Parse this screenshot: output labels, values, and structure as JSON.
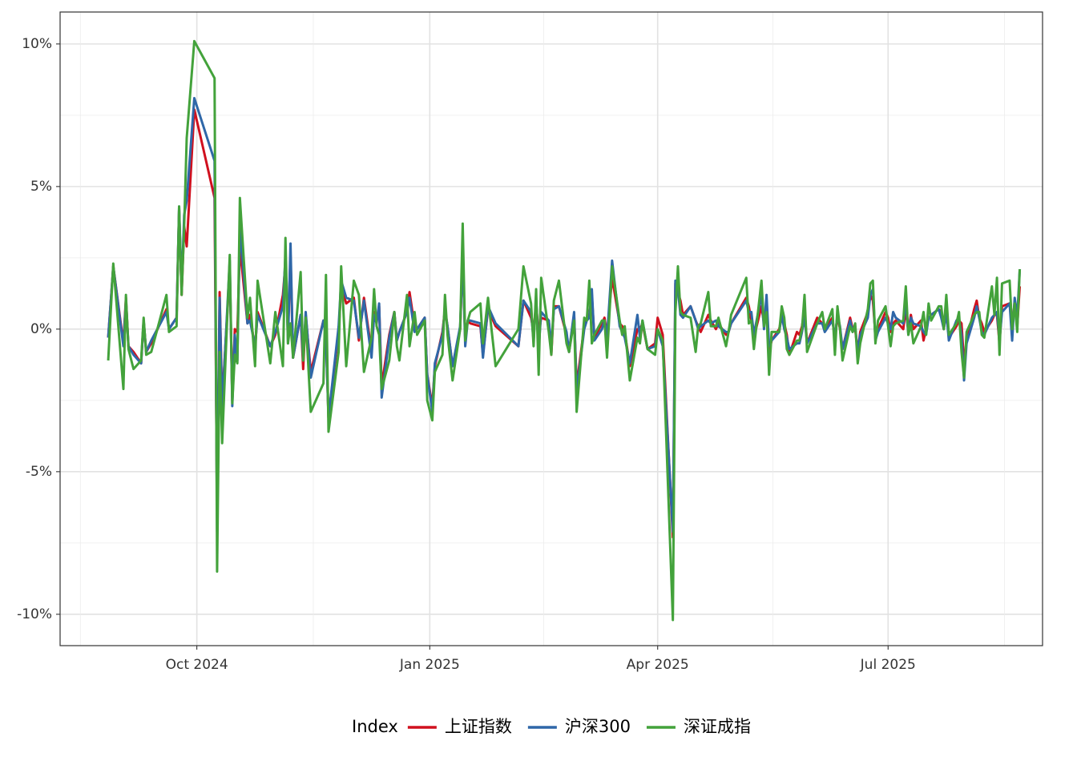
{
  "chart_data": {
    "type": "line",
    "x": [
      "2024-08-27",
      "2024-08-29",
      "2024-09-02",
      "2024-09-03",
      "2024-09-04",
      "2024-09-06",
      "2024-09-09",
      "2024-09-10",
      "2024-09-11",
      "2024-09-13",
      "2024-09-19",
      "2024-09-20",
      "2024-09-23",
      "2024-09-24",
      "2024-09-25",
      "2024-09-26",
      "2024-09-27",
      "2024-09-30",
      "2024-10-08",
      "2024-10-09",
      "2024-10-10",
      "2024-10-11",
      "2024-10-14",
      "2024-10-15",
      "2024-10-16",
      "2024-10-17",
      "2024-10-18",
      "2024-10-21",
      "2024-10-22",
      "2024-10-24",
      "2024-10-25",
      "2024-10-30",
      "2024-11-01",
      "2024-11-04",
      "2024-11-05",
      "2024-11-06",
      "2024-11-07",
      "2024-11-08",
      "2024-11-11",
      "2024-11-12",
      "2024-11-13",
      "2024-11-15",
      "2024-11-20",
      "2024-11-21",
      "2024-11-22",
      "2024-11-26",
      "2024-11-27",
      "2024-11-29",
      "2024-12-02",
      "2024-12-04",
      "2024-12-06",
      "2024-12-09",
      "2024-12-10",
      "2024-12-11",
      "2024-12-12",
      "2024-12-13",
      "2024-12-16",
      "2024-12-18",
      "2024-12-19",
      "2024-12-20",
      "2024-12-23",
      "2024-12-24",
      "2024-12-26",
      "2024-12-27",
      "2024-12-30",
      "2024-12-31",
      "2025-01-02",
      "2025-01-03",
      "2025-01-06",
      "2025-01-07",
      "2025-01-08",
      "2025-01-10",
      "2025-01-13",
      "2025-01-14",
      "2025-01-15",
      "2025-01-16",
      "2025-01-17",
      "2025-01-21",
      "2025-01-22",
      "2025-01-24",
      "2025-01-27",
      "2025-02-05",
      "2025-02-07",
      "2025-02-10",
      "2025-02-11",
      "2025-02-12",
      "2025-02-13",
      "2025-02-14",
      "2025-02-17",
      "2025-02-18",
      "2025-02-19",
      "2025-02-21",
      "2025-02-24",
      "2025-02-25",
      "2025-02-27",
      "2025-02-28",
      "2025-03-03",
      "2025-03-04",
      "2025-03-05",
      "2025-03-06",
      "2025-03-07",
      "2025-03-10",
      "2025-03-11",
      "2025-03-12",
      "2025-03-14",
      "2025-03-17",
      "2025-03-18",
      "2025-03-19",
      "2025-03-21",
      "2025-03-24",
      "2025-03-25",
      "2025-03-26",
      "2025-03-28",
      "2025-03-31",
      "2025-04-01",
      "2025-04-03",
      "2025-04-07",
      "2025-04-08",
      "2025-04-09",
      "2025-04-10",
      "2025-04-11",
      "2025-04-14",
      "2025-04-16",
      "2025-04-17",
      "2025-04-18",
      "2025-04-21",
      "2025-04-22",
      "2025-04-24",
      "2025-04-25",
      "2025-04-28",
      "2025-04-29",
      "2025-04-30",
      "2025-05-06",
      "2025-05-07",
      "2025-05-08",
      "2025-05-09",
      "2025-05-12",
      "2025-05-13",
      "2025-05-14",
      "2025-05-15",
      "2025-05-16",
      "2025-05-19",
      "2025-05-20",
      "2025-05-21",
      "2025-05-22",
      "2025-05-23",
      "2025-05-26",
      "2025-05-27",
      "2025-05-28",
      "2025-05-29",
      "2025-05-30",
      "2025-06-03",
      "2025-06-05",
      "2025-06-06",
      "2025-06-09",
      "2025-06-10",
      "2025-06-11",
      "2025-06-12",
      "2025-06-13",
      "2025-06-16",
      "2025-06-17",
      "2025-06-18",
      "2025-06-19",
      "2025-06-20",
      "2025-06-23",
      "2025-06-24",
      "2025-06-25",
      "2025-06-26",
      "2025-06-27",
      "2025-06-30",
      "2025-07-01",
      "2025-07-02",
      "2025-07-03",
      "2025-07-04",
      "2025-07-07",
      "2025-07-08",
      "2025-07-09",
      "2025-07-10",
      "2025-07-11",
      "2025-07-14",
      "2025-07-15",
      "2025-07-16",
      "2025-07-17",
      "2025-07-18",
      "2025-07-21",
      "2025-07-22",
      "2025-07-23",
      "2025-07-24",
      "2025-07-25",
      "2025-07-28",
      "2025-07-29",
      "2025-07-30",
      "2025-07-31",
      "2025-08-01",
      "2025-08-04",
      "2025-08-05",
      "2025-08-06",
      "2025-08-07",
      "2025-08-08",
      "2025-08-11",
      "2025-08-12",
      "2025-08-13",
      "2025-08-14",
      "2025-08-15",
      "2025-08-18",
      "2025-08-19",
      "2025-08-20",
      "2025-08-21",
      "2025-08-22"
    ],
    "series": [
      {
        "name": "上证指数",
        "color": "#d0101e",
        "values": [
          -0.3,
          2.2,
          -0.5,
          1.1,
          -0.6,
          -0.8,
          -1.2,
          0.3,
          -0.8,
          -0.5,
          0.7,
          0.0,
          0.4,
          4.2,
          1.2,
          3.6,
          2.9,
          7.7,
          4.6,
          -6.6,
          1.3,
          -2.6,
          2.1,
          -2.5,
          0.0,
          -0.1,
          2.9,
          0.2,
          0.5,
          -0.7,
          0.6,
          -0.6,
          -0.2,
          1.2,
          2.3,
          -0.1,
          2.6,
          -1.0,
          0.5,
          -1.4,
          0.5,
          -1.5,
          0.3,
          -0.3,
          -3.1,
          -0.1,
          1.5,
          0.9,
          1.1,
          -0.4,
          1.1,
          -0.8,
          0.6,
          0.3,
          0.8,
          -2.0,
          -0.2,
          0.6,
          -0.4,
          -0.1,
          0.6,
          1.3,
          0.1,
          0.0,
          0.4,
          -1.6,
          -2.7,
          -1.3,
          -0.1,
          0.7,
          0.1,
          -1.3,
          0.0,
          2.6,
          -0.4,
          0.3,
          0.2,
          0.1,
          -0.9,
          0.7,
          0.1,
          -0.6,
          1.0,
          0.4,
          -0.1,
          0.9,
          -0.2,
          0.4,
          0.3,
          -0.9,
          0.8,
          0.8,
          -0.2,
          -0.8,
          0.5,
          -2.0,
          0.1,
          0.4,
          0.5,
          1.2,
          -0.3,
          0.2,
          0.4,
          -0.2,
          1.8,
          0.2,
          0.1,
          -0.1,
          -1.3,
          0.0,
          0.0,
          0.2,
          -0.7,
          -0.5,
          0.4,
          -0.2,
          -7.3,
          1.6,
          1.3,
          1.0,
          0.5,
          0.8,
          0.3,
          0.1,
          -0.1,
          0.5,
          0.3,
          0.0,
          0.2,
          -0.2,
          -0.1,
          0.2,
          1.1,
          0.8,
          0.3,
          -0.3,
          0.8,
          0.2,
          0.9,
          -0.8,
          -0.4,
          0.0,
          0.4,
          0.2,
          -0.2,
          -0.9,
          -0.1,
          -0.2,
          0.1,
          0.7,
          -0.5,
          0.4,
          0.2,
          0.0,
          0.4,
          -0.4,
          0.5,
          0.0,
          -0.7,
          0.4,
          0.0,
          0.0,
          -0.8,
          -0.1,
          0.6,
          1.2,
          1.0,
          -0.2,
          0.0,
          0.6,
          0.4,
          -0.1,
          0.2,
          0.3,
          0.0,
          0.7,
          -0.1,
          0.5,
          0.0,
          0.3,
          -0.4,
          0.0,
          0.4,
          0.5,
          0.7,
          0.6,
          0.0,
          0.7,
          -0.3,
          0.1,
          0.3,
          0.2,
          -1.2,
          -0.4,
          0.7,
          1.0,
          0.4,
          0.2,
          -0.1,
          0.3,
          0.5,
          0.5,
          -0.5,
          0.8,
          0.9,
          0.0,
          1.0,
          0.1,
          1.5
        ]
      },
      {
        "name": "沪深300",
        "color": "#2f67a8",
        "values": [
          -0.3,
          2.2,
          -0.6,
          1.0,
          -0.6,
          -0.9,
          -1.2,
          0.3,
          -0.8,
          -0.4,
          0.6,
          0.0,
          0.4,
          4.3,
          1.4,
          4.0,
          4.5,
          8.1,
          5.9,
          -7.1,
          1.1,
          -2.8,
          2.4,
          -2.7,
          -0.2,
          -1.1,
          3.6,
          0.2,
          0.3,
          -0.6,
          0.5,
          -0.6,
          -0.1,
          0.8,
          2.6,
          -0.5,
          3.0,
          -1.0,
          0.5,
          -1.1,
          0.6,
          -1.7,
          0.3,
          -0.3,
          -3.1,
          0.1,
          1.7,
          1.1,
          1.0,
          -0.3,
          1.0,
          -1.0,
          0.5,
          0.2,
          0.9,
          -2.4,
          -0.3,
          0.6,
          -0.4,
          -0.1,
          0.6,
          1.1,
          -0.1,
          0.0,
          0.4,
          -1.6,
          -2.9,
          -1.2,
          -0.2,
          0.7,
          0.1,
          -1.3,
          0.1,
          2.6,
          -0.6,
          0.3,
          0.3,
          0.2,
          -1.0,
          0.8,
          0.2,
          -0.6,
          1.0,
          0.6,
          -0.4,
          1.1,
          -0.7,
          0.6,
          0.3,
          -0.6,
          0.7,
          0.8,
          -0.1,
          -0.8,
          0.6,
          -2.2,
          0.0,
          0.3,
          0.4,
          1.4,
          -0.4,
          0.0,
          0.3,
          -0.3,
          2.4,
          0.1,
          -0.1,
          -0.3,
          -1.2,
          0.5,
          -0.3,
          0.3,
          -0.7,
          -0.6,
          0.0,
          -0.6,
          -7.1,
          1.7,
          1.4,
          0.5,
          0.4,
          0.8,
          0.3,
          0.0,
          0.1,
          0.3,
          0.2,
          0.3,
          0.1,
          -0.1,
          -0.1,
          0.2,
          1.0,
          0.6,
          0.6,
          -0.2,
          1.2,
          0.0,
          1.2,
          -0.6,
          -0.4,
          -0.1,
          0.5,
          0.0,
          -0.3,
          -0.7,
          -0.5,
          -0.5,
          -0.1,
          0.4,
          -0.5,
          0.2,
          0.2,
          -0.1,
          0.3,
          -0.3,
          0.5,
          0.1,
          -0.7,
          0.3,
          -0.1,
          0.1,
          -0.8,
          -0.2,
          0.4,
          1.2,
          1.4,
          -0.4,
          -0.1,
          0.4,
          0.2,
          0.0,
          0.6,
          0.4,
          0.2,
          1.0,
          -0.2,
          0.4,
          0.2,
          0.1,
          -0.1,
          -0.2,
          0.4,
          0.5,
          0.7,
          0.4,
          0.0,
          0.6,
          -0.4,
          0.3,
          0.4,
          -0.2,
          -1.8,
          -0.5,
          0.4,
          0.8,
          0.4,
          -0.1,
          -0.2,
          0.4,
          0.5,
          0.6,
          -0.4,
          0.6,
          0.9,
          -0.4,
          1.1,
          0.4,
          2.1
        ]
      },
      {
        "name": "深证成指",
        "color": "#43a23b",
        "values": [
          -1.1,
          2.3,
          -2.1,
          1.2,
          -0.7,
          -1.4,
          -1.1,
          0.4,
          -0.9,
          -0.8,
          1.2,
          -0.1,
          0.1,
          4.3,
          1.2,
          3.6,
          6.7,
          10.1,
          8.8,
          -8.5,
          -0.8,
          -4.0,
          2.6,
          -2.6,
          -0.9,
          -1.2,
          4.6,
          0.4,
          1.1,
          -1.3,
          1.7,
          -1.2,
          0.6,
          -1.3,
          3.2,
          -0.5,
          0.2,
          -1.0,
          2.0,
          -1.1,
          0.4,
          -2.9,
          -1.9,
          1.9,
          -3.6,
          -0.8,
          2.2,
          -1.3,
          1.7,
          1.2,
          -1.5,
          -0.3,
          1.4,
          0.1,
          -0.2,
          -2.1,
          -1.1,
          0.6,
          -0.6,
          -1.1,
          1.2,
          -0.6,
          0.6,
          -0.2,
          0.3,
          -2.5,
          -3.2,
          -1.5,
          -0.9,
          1.2,
          -0.2,
          -1.8,
          0.0,
          3.7,
          -0.4,
          0.3,
          0.6,
          0.9,
          -0.5,
          1.1,
          -1.3,
          0.0,
          2.2,
          0.9,
          -0.6,
          1.4,
          -1.6,
          1.8,
          -0.1,
          -0.9,
          1.0,
          1.7,
          -0.5,
          -0.8,
          0.3,
          -2.9,
          0.4,
          0.3,
          1.7,
          -0.5,
          -0.2,
          0.3,
          0.3,
          -1.0,
          2.2,
          0.3,
          -0.2,
          0.1,
          -1.8,
          -0.3,
          -0.5,
          0.3,
          -0.7,
          -0.9,
          0.0,
          -0.4,
          -10.2,
          0.6,
          2.2,
          0.6,
          0.5,
          0.4,
          -0.8,
          0.1,
          0.2,
          1.3,
          0.1,
          0.1,
          0.4,
          -0.6,
          -0.1,
          0.5,
          1.8,
          0.2,
          0.3,
          -0.7,
          1.7,
          0.1,
          0.6,
          -1.6,
          -0.1,
          -0.1,
          0.8,
          0.4,
          -0.7,
          -0.9,
          -0.4,
          -0.4,
          0.0,
          1.2,
          -0.8,
          0.2,
          0.6,
          0.0,
          0.7,
          -0.9,
          0.8,
          0.0,
          -1.1,
          0.1,
          -0.1,
          0.2,
          -1.2,
          -0.5,
          0.7,
          1.6,
          1.7,
          -0.5,
          0.3,
          0.8,
          0.1,
          -0.6,
          0.1,
          0.2,
          0.3,
          1.5,
          -0.2,
          0.2,
          -0.5,
          0.1,
          0.6,
          -0.2,
          0.9,
          0.3,
          0.8,
          0.8,
          0.0,
          1.2,
          -0.2,
          0.2,
          0.6,
          -0.8,
          -1.7,
          -0.1,
          0.5,
          0.6,
          0.6,
          -0.2,
          -0.3,
          1.5,
          0.5,
          1.8,
          -0.9,
          1.6,
          1.7,
          0.0,
          0.9,
          -0.1,
          2.1
        ]
      }
    ],
    "xlim": [
      "2024-08-08",
      "2025-08-31"
    ],
    "xticks": [
      {
        "value": "2024-10-01",
        "label": "Oct 2024"
      },
      {
        "value": "2025-01-01",
        "label": "Jan 2025"
      },
      {
        "value": "2025-04-01",
        "label": "Apr 2025"
      },
      {
        "value": "2025-07-01",
        "label": "Jul 2025"
      }
    ],
    "ylim": [
      -11.1,
      11.12
    ],
    "yticks": [
      {
        "value": -10,
        "label": "-10%"
      },
      {
        "value": -5,
        "label": "-5%"
      },
      {
        "value": 0,
        "label": "0%"
      },
      {
        "value": 5,
        "label": "5%"
      },
      {
        "value": 10,
        "label": "10%"
      }
    ],
    "grid": true,
    "legend_title": "Index",
    "legend_position": "bottom"
  }
}
